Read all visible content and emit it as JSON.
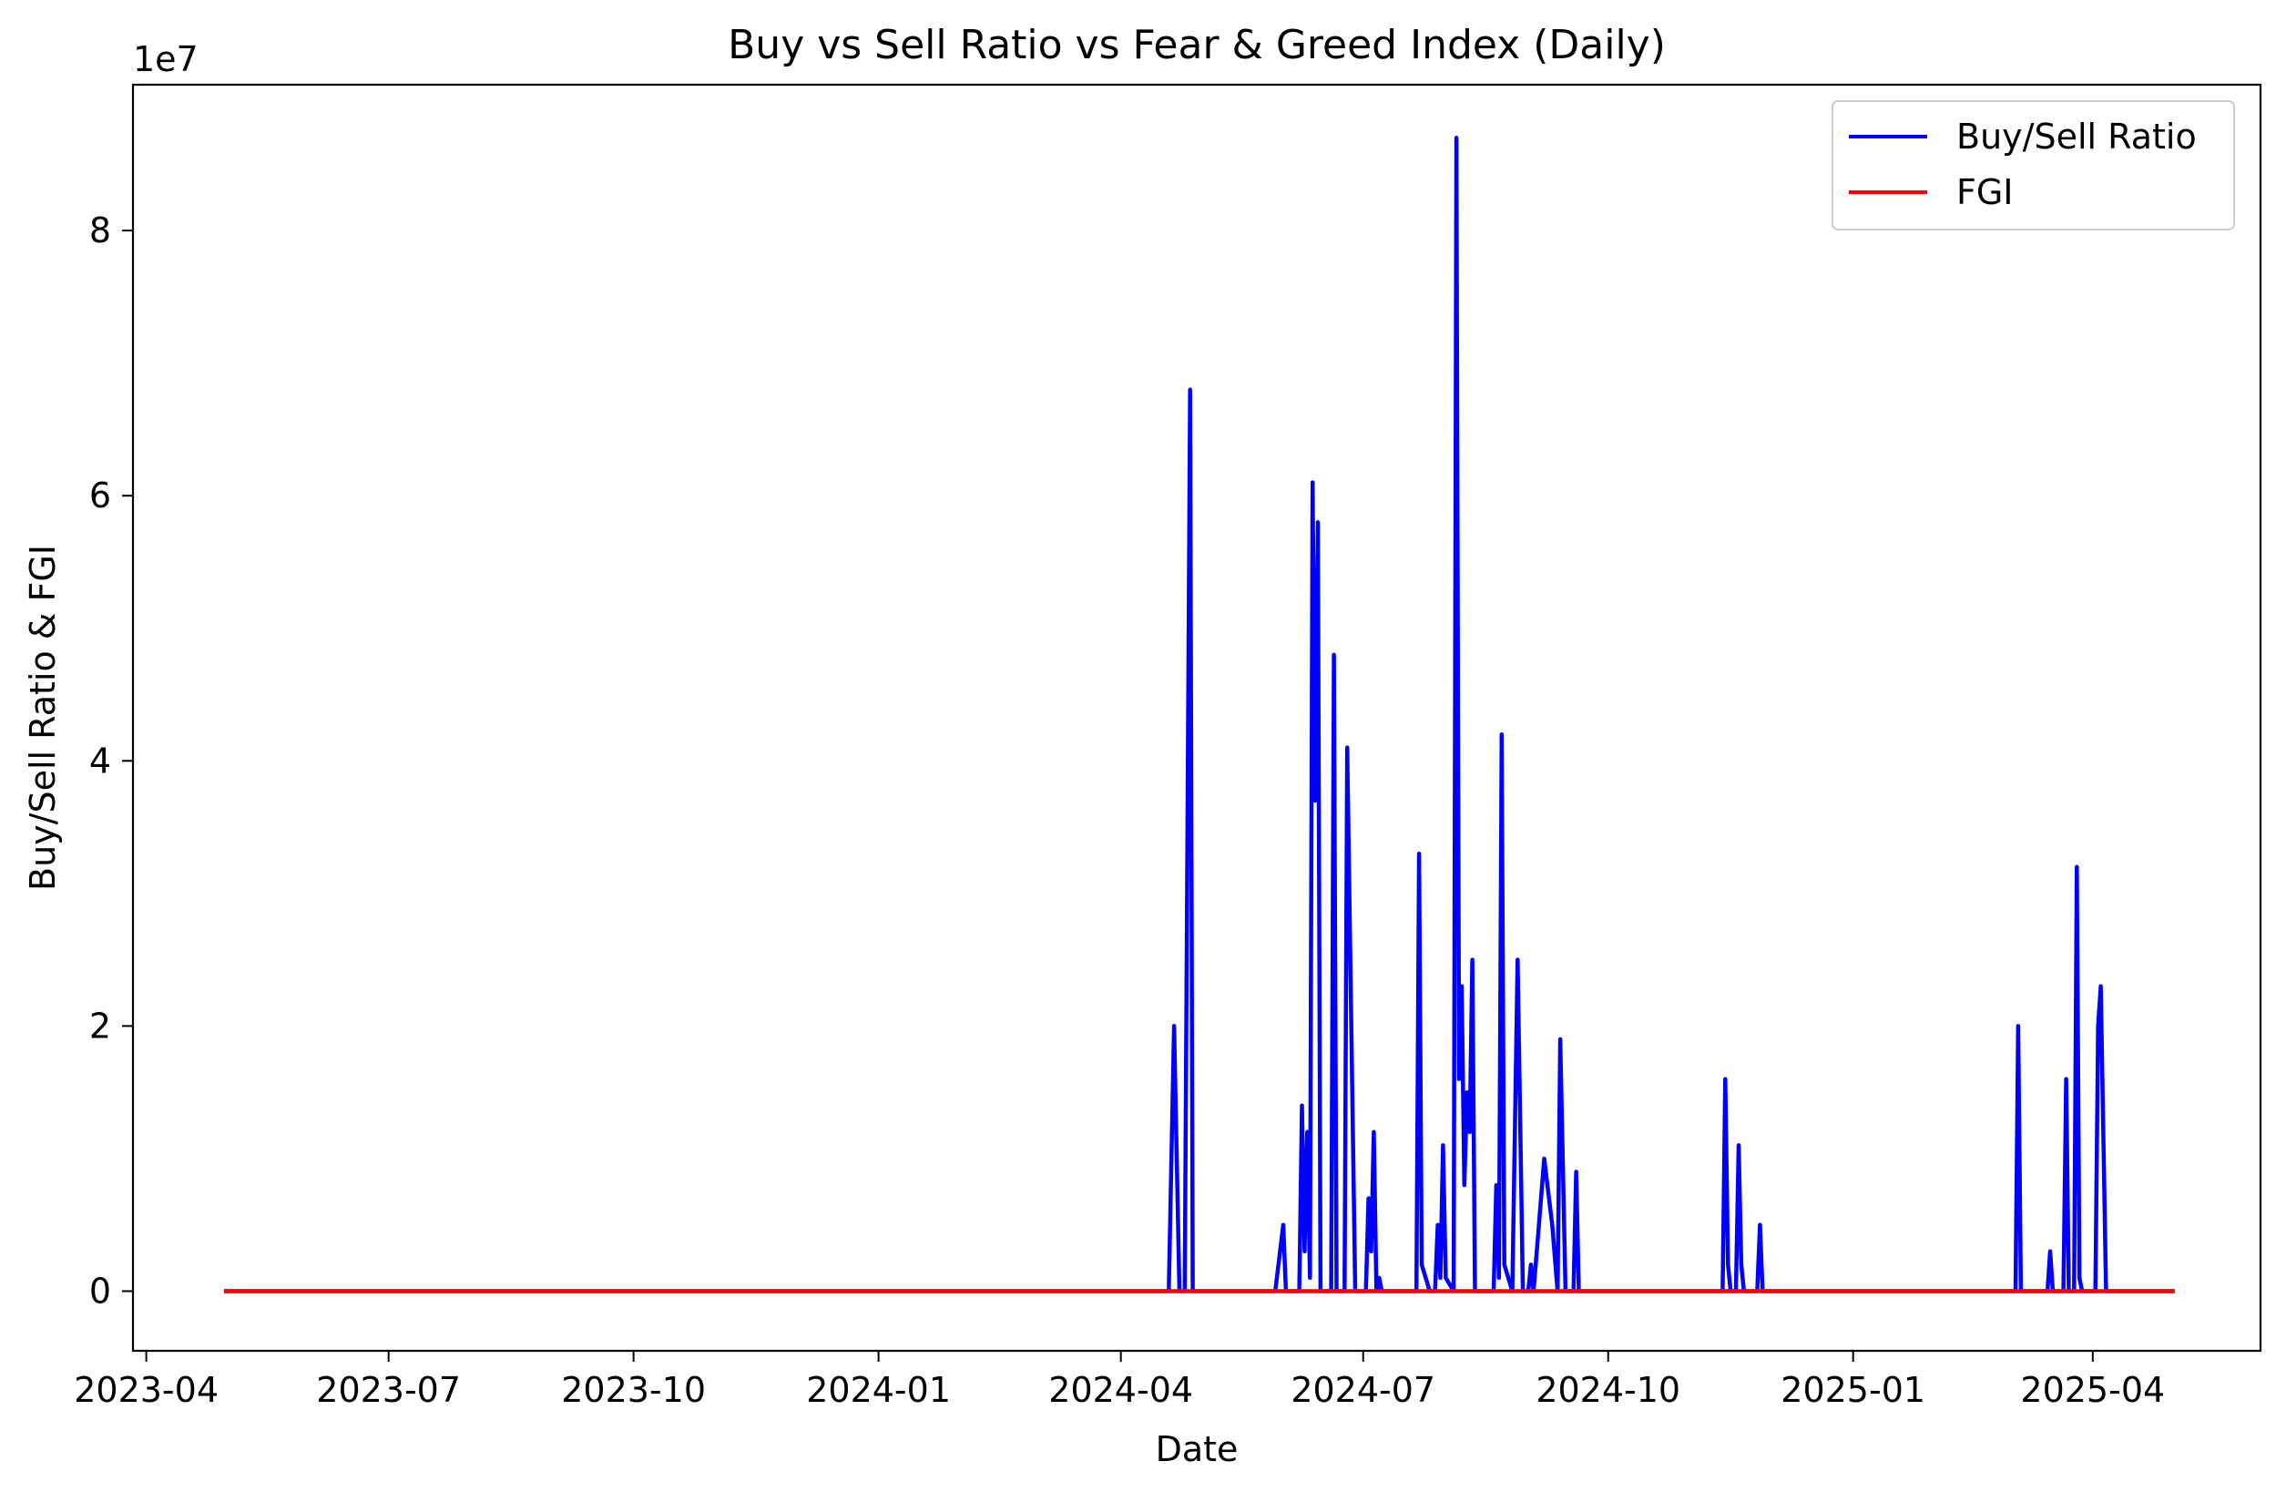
{
  "chart_data": {
    "type": "line",
    "title": "Buy vs Sell Ratio vs Fear & Greed Index (Daily)",
    "xlabel": "Date",
    "ylabel": "Buy/Sell Ratio & FGI",
    "y_offset_label": "1e7",
    "y_scale_multiplier": 10000000,
    "xlim": [
      "2023-03-27",
      "2025-06-03"
    ],
    "ylim": [
      -0.45,
      9.1
    ],
    "x_ticks": [
      "2023-04",
      "2023-07",
      "2023-10",
      "2024-01",
      "2024-04",
      "2024-07",
      "2024-10",
      "2025-01",
      "2025-04"
    ],
    "y_ticks": [
      0,
      2,
      4,
      6,
      8
    ],
    "grid": false,
    "legend": "upper right",
    "series": [
      {
        "name": "Buy/Sell Ratio",
        "color": "#0000ff",
        "points": [
          [
            "2023-05-01",
            0
          ],
          [
            "2024-04-19",
            0
          ],
          [
            "2024-04-21",
            2.0
          ],
          [
            "2024-04-23",
            0
          ],
          [
            "2024-04-25",
            0
          ],
          [
            "2024-04-27",
            6.8
          ],
          [
            "2024-04-28",
            0
          ],
          [
            "2024-05-29",
            0
          ],
          [
            "2024-06-01",
            0.5
          ],
          [
            "2024-06-02",
            0
          ],
          [
            "2024-06-07",
            0
          ],
          [
            "2024-06-08",
            1.4
          ],
          [
            "2024-06-09",
            0.3
          ],
          [
            "2024-06-10",
            1.2
          ],
          [
            "2024-06-11",
            0.1
          ],
          [
            "2024-06-12",
            6.1
          ],
          [
            "2024-06-13",
            3.7
          ],
          [
            "2024-06-14",
            5.8
          ],
          [
            "2024-06-15",
            0
          ],
          [
            "2024-06-19",
            0
          ],
          [
            "2024-06-20",
            4.8
          ],
          [
            "2024-06-21",
            0
          ],
          [
            "2024-06-24",
            0
          ],
          [
            "2024-06-25",
            4.1
          ],
          [
            "2024-06-28",
            0
          ],
          [
            "2024-07-02",
            0
          ],
          [
            "2024-07-03",
            0.7
          ],
          [
            "2024-07-04",
            0.3
          ],
          [
            "2024-07-05",
            1.2
          ],
          [
            "2024-07-06",
            0
          ],
          [
            "2024-07-07",
            0.1
          ],
          [
            "2024-07-08",
            0
          ],
          [
            "2024-07-21",
            0
          ],
          [
            "2024-07-22",
            3.3
          ],
          [
            "2024-07-23",
            0.2
          ],
          [
            "2024-07-26",
            0
          ],
          [
            "2024-07-28",
            0
          ],
          [
            "2024-07-29",
            0.5
          ],
          [
            "2024-07-30",
            0.1
          ],
          [
            "2024-07-31",
            1.1
          ],
          [
            "2024-08-01",
            0.1
          ],
          [
            "2024-08-04",
            0
          ],
          [
            "2024-08-05",
            8.7
          ],
          [
            "2024-08-06",
            1.6
          ],
          [
            "2024-08-07",
            2.3
          ],
          [
            "2024-08-08",
            0.8
          ],
          [
            "2024-08-09",
            1.5
          ],
          [
            "2024-08-10",
            1.2
          ],
          [
            "2024-08-11",
            2.5
          ],
          [
            "2024-08-12",
            0
          ],
          [
            "2024-08-19",
            0
          ],
          [
            "2024-08-20",
            0.8
          ],
          [
            "2024-08-21",
            0.1
          ],
          [
            "2024-08-22",
            4.2
          ],
          [
            "2024-08-23",
            0.2
          ],
          [
            "2024-08-26",
            0
          ],
          [
            "2024-08-28",
            2.5
          ],
          [
            "2024-08-30",
            0
          ],
          [
            "2024-09-01",
            0
          ],
          [
            "2024-09-02",
            0.2
          ],
          [
            "2024-09-03",
            0
          ],
          [
            "2024-09-05",
            0.5
          ],
          [
            "2024-09-07",
            1.0
          ],
          [
            "2024-09-10",
            0.5
          ],
          [
            "2024-09-12",
            0
          ],
          [
            "2024-09-13",
            1.9
          ],
          [
            "2024-09-15",
            0
          ],
          [
            "2024-09-18",
            0
          ],
          [
            "2024-09-19",
            0.9
          ],
          [
            "2024-09-20",
            0
          ],
          [
            "2024-11-13",
            0
          ],
          [
            "2024-11-14",
            1.6
          ],
          [
            "2024-11-15",
            0.2
          ],
          [
            "2024-11-16",
            0
          ],
          [
            "2024-11-18",
            0
          ],
          [
            "2024-11-19",
            1.1
          ],
          [
            "2024-11-20",
            0.2
          ],
          [
            "2024-11-21",
            0
          ],
          [
            "2024-11-26",
            0
          ],
          [
            "2024-11-27",
            0.5
          ],
          [
            "2024-11-28",
            0
          ],
          [
            "2025-03-03",
            0
          ],
          [
            "2025-03-04",
            2.0
          ],
          [
            "2025-03-05",
            0
          ],
          [
            "2025-03-15",
            0
          ],
          [
            "2025-03-16",
            0.3
          ],
          [
            "2025-03-17",
            0
          ],
          [
            "2025-03-21",
            0
          ],
          [
            "2025-03-22",
            1.6
          ],
          [
            "2025-03-23",
            0
          ],
          [
            "2025-03-25",
            0
          ],
          [
            "2025-03-26",
            3.2
          ],
          [
            "2025-03-27",
            0.1
          ],
          [
            "2025-03-28",
            0
          ],
          [
            "2025-04-02",
            0
          ],
          [
            "2025-04-03",
            2.0
          ],
          [
            "2025-04-04",
            2.3
          ],
          [
            "2025-04-06",
            0
          ],
          [
            "2025-05-01",
            0
          ]
        ]
      },
      {
        "name": "FGI",
        "color": "#ff0000",
        "points": [
          [
            "2023-05-01",
            0
          ],
          [
            "2025-05-01",
            0
          ]
        ]
      }
    ]
  }
}
